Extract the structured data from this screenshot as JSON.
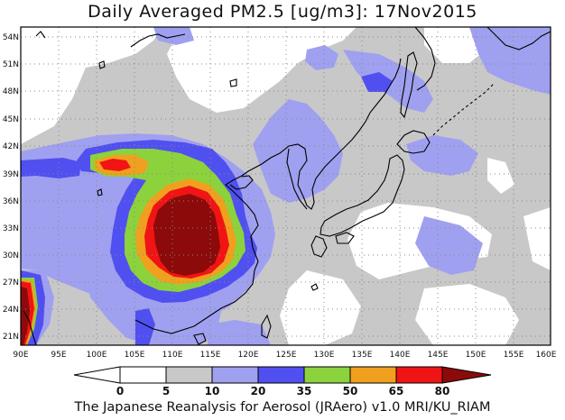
{
  "title": "Daily Averaged PM2.5 [ug/m3]: 17Nov2015",
  "footer": "The Japanese Reanalysis for Aerosol (JRAero) v1.0 MRI/KU_RIAM",
  "map": {
    "lon_range": [
      90,
      160
    ],
    "lat_range": [
      20,
      55
    ],
    "lon_ticks": [
      "90E",
      "95E",
      "100E",
      "105E",
      "110E",
      "115E",
      "120E",
      "125E",
      "130E",
      "135E",
      "140E",
      "145E",
      "150E",
      "155E",
      "160E"
    ],
    "lat_ticks": [
      "21N",
      "24N",
      "27N",
      "30N",
      "33N",
      "36N",
      "39N",
      "42N",
      "45N",
      "48N",
      "51N",
      "54N"
    ],
    "grid": "dotted"
  },
  "colorbar": {
    "labels": [
      "0",
      "5",
      "10",
      "20",
      "35",
      "50",
      "65",
      "80"
    ],
    "colors": [
      "#ffffff",
      "#c8c8c8",
      "#a0a0f0",
      "#5050f0",
      "#8cd23c",
      "#f0a01e",
      "#f01414",
      "#8c0a0a"
    ]
  }
}
